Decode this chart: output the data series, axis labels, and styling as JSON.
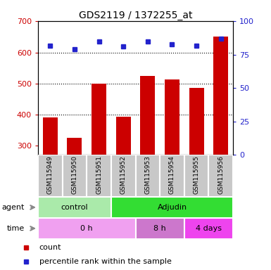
{
  "title": "GDS2119 / 1372255_at",
  "samples": [
    "GSM115949",
    "GSM115950",
    "GSM115951",
    "GSM115952",
    "GSM115953",
    "GSM115954",
    "GSM115955",
    "GSM115956"
  ],
  "counts": [
    390,
    325,
    500,
    392,
    525,
    512,
    485,
    650
  ],
  "percentiles": [
    82,
    79,
    85,
    81,
    85,
    83,
    82,
    87
  ],
  "ylim_left": [
    270,
    700
  ],
  "ylim_right": [
    0,
    100
  ],
  "yticks_left": [
    300,
    400,
    500,
    600,
    700
  ],
  "yticks_right": [
    0,
    25,
    50,
    75,
    100
  ],
  "bar_color": "#cc0000",
  "dot_color": "#2222cc",
  "agent_groups": [
    {
      "label": "control",
      "start": 0,
      "end": 3,
      "color": "#aaeaaa"
    },
    {
      "label": "Adjudin",
      "start": 3,
      "end": 8,
      "color": "#33dd33"
    }
  ],
  "time_groups": [
    {
      "label": "0 h",
      "start": 0,
      "end": 4,
      "color": "#f0a0f0"
    },
    {
      "label": "8 h",
      "start": 4,
      "end": 6,
      "color": "#cc77cc"
    },
    {
      "label": "4 days",
      "start": 6,
      "end": 8,
      "color": "#ee44ee"
    }
  ],
  "legend_count_label": "count",
  "legend_pct_label": "percentile rank within the sample",
  "agent_label": "agent",
  "time_label": "time",
  "tick_color_left": "#cc0000",
  "tick_color_right": "#2222cc",
  "dotted_yticks": [
    400,
    500,
    600
  ],
  "label_area_color": "#c8c8c8",
  "label_area_border": "#ffffff"
}
